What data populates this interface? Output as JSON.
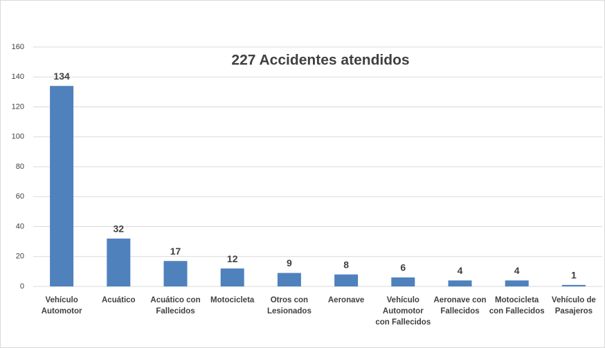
{
  "chart_data": {
    "type": "bar",
    "title": "227 Accidentes   atendidos",
    "categories": [
      "Vehículo Automotor",
      "Acuático",
      "Acuático con Fallecidos",
      "Motocicleta",
      "Otros con Lesionados",
      "Aeronave",
      "Vehículo Automotor con Fallecidos",
      "Aeronave con Fallecidos",
      "Motocicleta con Fallecidos",
      "Vehículo de Pasajeros"
    ],
    "values": [
      134,
      32,
      17,
      12,
      9,
      8,
      6,
      4,
      4,
      1
    ],
    "color": "#4f81bd",
    "ylim": [
      0,
      160
    ],
    "yticks": [
      0,
      20,
      40,
      60,
      80,
      100,
      120,
      140,
      160
    ],
    "grid": true
  }
}
